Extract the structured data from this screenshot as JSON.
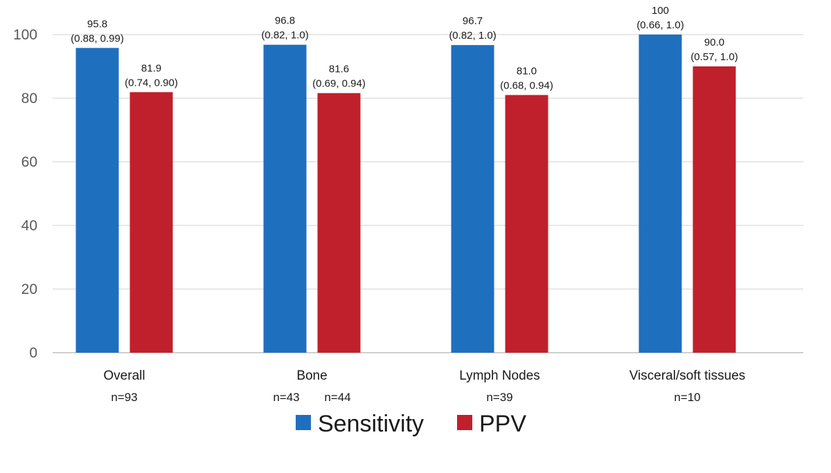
{
  "chart_data": {
    "type": "bar",
    "title": "",
    "xlabel": "",
    "ylabel": "",
    "ylim": [
      0,
      100
    ],
    "yticks": [
      0,
      20,
      40,
      60,
      80,
      100
    ],
    "grid": true,
    "legend_position": "bottom",
    "categories": [
      "Overall",
      "Bone",
      "Lymph Nodes",
      "Visceral/soft tissues"
    ],
    "category_n": [
      [
        "n=93"
      ],
      [
        "n=43",
        "n=44"
      ],
      [
        "n=39"
      ],
      [
        "n=10"
      ]
    ],
    "series": [
      {
        "name": "Sensitivity",
        "color": "#1f6fbf",
        "values": [
          95.8,
          96.8,
          96.7,
          100
        ],
        "labels": [
          "95.8",
          "96.8",
          "96.7",
          "100"
        ],
        "ci": [
          "(0.88, 0.99)",
          "(0.82, 1.0)",
          "(0.82, 1.0)",
          "(0.66, 1.0)"
        ]
      },
      {
        "name": "PPV",
        "color": "#c0202b",
        "values": [
          81.9,
          81.6,
          81.0,
          90.0
        ],
        "labels": [
          "81.9",
          "81.6",
          "81.0",
          "90.0"
        ],
        "ci": [
          "(0.74, 0.90)",
          "(0.69, 0.94)",
          "(0.68, 0.94)",
          "(0.57, 1.0)"
        ]
      }
    ]
  }
}
